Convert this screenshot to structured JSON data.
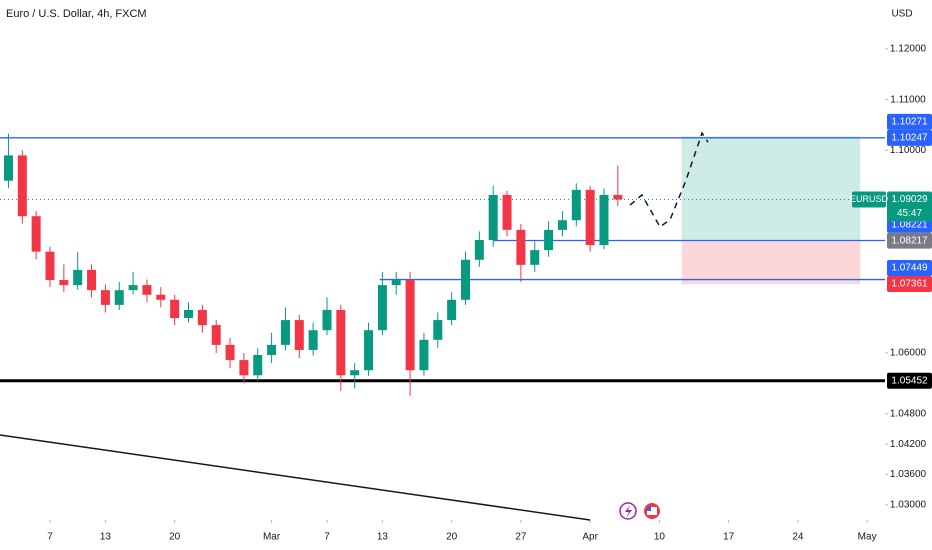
{
  "chart_data": {
    "type": "candlestick",
    "title": "Euro / U.S. Dollar, 4h, FXCM",
    "y_axis_label": "USD",
    "x": [
      -3,
      -2,
      -1,
      0,
      1,
      2,
      3,
      4,
      5,
      6,
      7,
      8,
      9,
      10,
      11,
      12,
      13,
      14,
      15,
      16,
      17,
      18,
      19,
      20,
      21,
      22,
      23,
      24,
      25,
      26,
      27,
      28,
      29,
      30,
      31,
      32,
      33,
      34,
      35,
      36,
      37,
      38,
      39,
      40,
      41
    ],
    "open": [
      1.094,
      1.099,
      1.087,
      1.08,
      1.0744,
      1.0734,
      1.0764,
      1.0724,
      1.0695,
      1.0724,
      1.0734,
      1.0715,
      1.0705,
      1.0669,
      1.0685,
      1.0655,
      1.0616,
      1.0586,
      1.0556,
      1.0596,
      1.0616,
      1.0665,
      1.0606,
      1.0645,
      1.0685,
      1.0556,
      1.0566,
      1.0645,
      1.0734,
      1.0744,
      1.0566,
      1.0626,
      1.0665,
      1.0705,
      1.0784,
      1.0823,
      1.0912,
      1.0843,
      1.0774,
      1.0803,
      1.0843,
      1.0862,
      1.0922,
      1.0813,
      1.0912
    ],
    "high": [
      1.1033,
      1.1,
      1.088,
      1.081,
      1.0775,
      1.08,
      1.0775,
      1.0735,
      1.074,
      1.076,
      1.0745,
      1.073,
      1.0715,
      1.07,
      1.0695,
      1.0665,
      1.063,
      1.06,
      1.061,
      1.064,
      1.069,
      1.0675,
      1.066,
      1.071,
      1.0695,
      1.058,
      1.066,
      1.076,
      1.076,
      1.076,
      1.064,
      1.068,
      1.072,
      1.08,
      1.084,
      1.093,
      1.092,
      1.0855,
      1.082,
      1.086,
      1.088,
      1.0935,
      1.093,
      1.0925,
      1.097
    ],
    "low": [
      1.0925,
      1.0855,
      1.0785,
      1.073,
      1.072,
      1.0725,
      1.071,
      1.068,
      1.0685,
      1.0715,
      1.07,
      1.069,
      1.0655,
      1.066,
      1.064,
      1.06,
      1.057,
      1.054,
      1.0545,
      1.058,
      1.0605,
      1.059,
      1.0595,
      1.0635,
      1.0525,
      1.053,
      1.0555,
      1.0635,
      1.0715,
      1.0515,
      1.0555,
      1.061,
      1.0655,
      1.0695,
      1.077,
      1.081,
      1.083,
      1.074,
      1.076,
      1.079,
      1.083,
      1.085,
      1.08,
      1.0805,
      1.089
    ],
    "close": [
      1.099,
      1.087,
      1.08,
      1.0744,
      1.0734,
      1.0764,
      1.0724,
      1.0695,
      1.0724,
      1.0734,
      1.0715,
      1.0705,
      1.0669,
      1.0685,
      1.0655,
      1.0616,
      1.0586,
      1.0556,
      1.0596,
      1.0616,
      1.0665,
      1.0606,
      1.0645,
      1.0685,
      1.0556,
      1.0566,
      1.0645,
      1.0734,
      1.0744,
      1.0566,
      1.0626,
      1.0665,
      1.0705,
      1.0784,
      1.0823,
      1.0912,
      1.0843,
      1.0774,
      1.0803,
      1.0843,
      1.0862,
      1.0922,
      1.0813,
      1.0912,
      1.0903
    ],
    "up_color": "#089981",
    "down_color": "#f23645",
    "xlim": [
      -3.61,
      60.29
    ],
    "ylim": [
      1.02704,
      1.12967
    ],
    "xticks": [
      {
        "value": 0,
        "label": "7"
      },
      {
        "value": 4,
        "label": "13"
      },
      {
        "value": 9,
        "label": "20"
      },
      {
        "value": 16,
        "label": "Mar"
      },
      {
        "value": 20,
        "label": "7"
      },
      {
        "value": 24,
        "label": "13"
      },
      {
        "value": 29,
        "label": "20"
      },
      {
        "value": 34,
        "label": "27"
      },
      {
        "value": 39,
        "label": "Apr"
      },
      {
        "value": 44,
        "label": "10"
      },
      {
        "value": 49,
        "label": "17"
      },
      {
        "value": 54,
        "label": "24"
      },
      {
        "value": 59,
        "label": "May"
      }
    ],
    "yticks": [
      {
        "value": 1.12,
        "label": "1.12000"
      },
      {
        "value": 1.11,
        "label": "1.11000"
      },
      {
        "value": 1.1,
        "label": "1.10000"
      },
      {
        "value": 1.06,
        "label": "1.06000"
      },
      {
        "value": 1.048,
        "label": "1.04800"
      },
      {
        "value": 1.042,
        "label": "1.04200"
      },
      {
        "value": 1.036,
        "label": "1.03600"
      },
      {
        "value": 1.03,
        "label": "1.03000"
      }
    ],
    "levels": [
      {
        "value": 1.10247,
        "from": -3.61,
        "to": 60.29,
        "color": "#2962ff"
      },
      {
        "value": 1.08221,
        "from": 32,
        "to": 60.29,
        "color": "#2962ff"
      },
      {
        "value": 1.07449,
        "from": 23.8,
        "to": 60.29,
        "color": "#2962ff"
      },
      {
        "value": 1.05452,
        "from": -3.61,
        "to": 60.29,
        "color": "#000000"
      }
    ],
    "trendline": {
      "x": [
        -3.61,
        39
      ],
      "y": [
        1.04382,
        1.02704
      ],
      "color": "#131722"
    },
    "position": {
      "x": [
        45.6,
        58.5
      ],
      "entry": 1.08221,
      "target": 1.10271,
      "stop": 1.07361
    },
    "projection": {
      "x": [
        41.88,
        42.74,
        44.04,
        44.77,
        45.92,
        47.08,
        47.51
      ],
      "y": [
        1.0892,
        1.0912,
        1.0849,
        1.0863,
        1.0941,
        1.1034,
        1.1016
      ]
    },
    "last_price": {
      "value": 1.09029,
      "label": "1.09029",
      "symbol": "EURUSD",
      "countdown": "45:47",
      "color": "#089981"
    },
    "price_labels": [
      {
        "value": 1.10271,
        "label": "1.10271",
        "color": "#2962ff"
      },
      {
        "value": 1.10247,
        "label": "1.10247",
        "color": "#2962ff"
      },
      {
        "value": 1.08221,
        "label": "1.08221",
        "color": "#2962ff"
      },
      {
        "value": 1.08217,
        "label": "1.08217",
        "color": "#787b86"
      },
      {
        "value": 1.07449,
        "label": "1.07449",
        "color": "#2962ff"
      },
      {
        "value": 1.07361,
        "label": "1.07361",
        "color": "#f23645"
      },
      {
        "value": 1.05452,
        "label": "1.05452",
        "color": "#000000"
      }
    ]
  }
}
